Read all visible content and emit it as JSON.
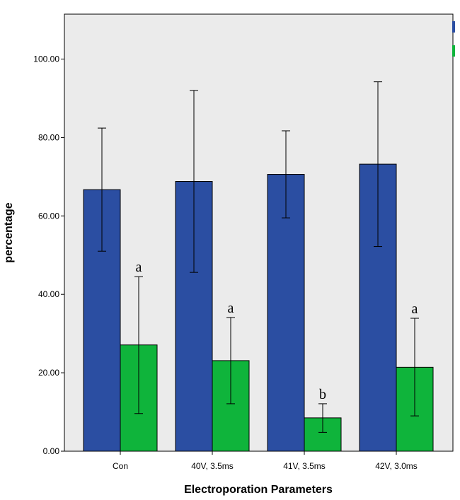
{
  "chart_data": {
    "type": "bar",
    "xlabel": "Electroporation Parameters",
    "ylabel": "percentage",
    "ylim": [
      0,
      110
    ],
    "yticks": [
      "0.00",
      "20.00",
      "40.00",
      "60.00",
      "80.00",
      "100.00"
    ],
    "ytick_values": [
      0,
      20,
      40,
      60,
      80,
      100
    ],
    "categories": [
      "Con",
      "40V, 3.5ms",
      "41V, 3.5ms",
      "42V, 3.0ms"
    ],
    "series": [
      {
        "color": "#2b4ea2",
        "values": [
          66.7,
          68.8,
          70.6,
          73.2
        ],
        "err_low": [
          51.0,
          45.6,
          59.5,
          52.2
        ],
        "err_high": [
          82.4,
          92.0,
          81.7,
          94.2
        ]
      },
      {
        "color": "#0fb43b",
        "values": [
          27.1,
          23.1,
          8.5,
          21.4
        ],
        "err_low": [
          9.6,
          12.1,
          4.8,
          9.0
        ],
        "err_high": [
          44.5,
          34.1,
          12.1,
          33.9
        ],
        "labels": [
          "a",
          "a",
          "b",
          "a"
        ]
      }
    ],
    "background": "#ebebeb",
    "grid": false,
    "legend": "top-right (partially cropped color swatches)"
  }
}
